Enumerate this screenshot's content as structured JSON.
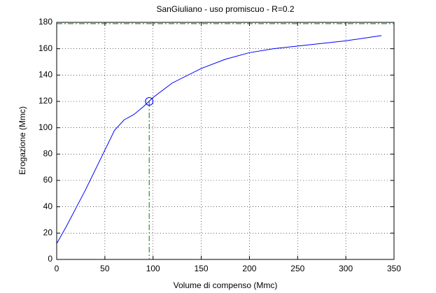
{
  "chart_data": {
    "type": "line",
    "title": "SanGiuliano  -  uso promiscuo  -   R=0.2",
    "x_label": "Volume di compenso (Mmc)",
    "y_label": "Erogazione (Mmc)",
    "x": [
      0,
      10,
      20,
      30,
      40,
      50,
      60,
      70,
      80,
      90,
      100,
      120,
      150,
      175,
      200,
      225,
      250,
      300,
      337
    ],
    "values": [
      12,
      25,
      39,
      53,
      68,
      83,
      98,
      106,
      110,
      116,
      123,
      134,
      145,
      152,
      157,
      160,
      162,
      166,
      170
    ],
    "color": "#0000ff",
    "marker": {
      "x": 96,
      "y": 120,
      "color": "#0000ff"
    },
    "guide_color": "#008000",
    "reference_y": 179,
    "xlim": [
      0,
      350
    ],
    "xticks": [
      0,
      50,
      100,
      150,
      200,
      250,
      300,
      350
    ],
    "ylim": [
      0,
      180
    ],
    "yticks": [
      0,
      20,
      40,
      60,
      80,
      100,
      120,
      140,
      160,
      180
    ],
    "grid": true
  }
}
